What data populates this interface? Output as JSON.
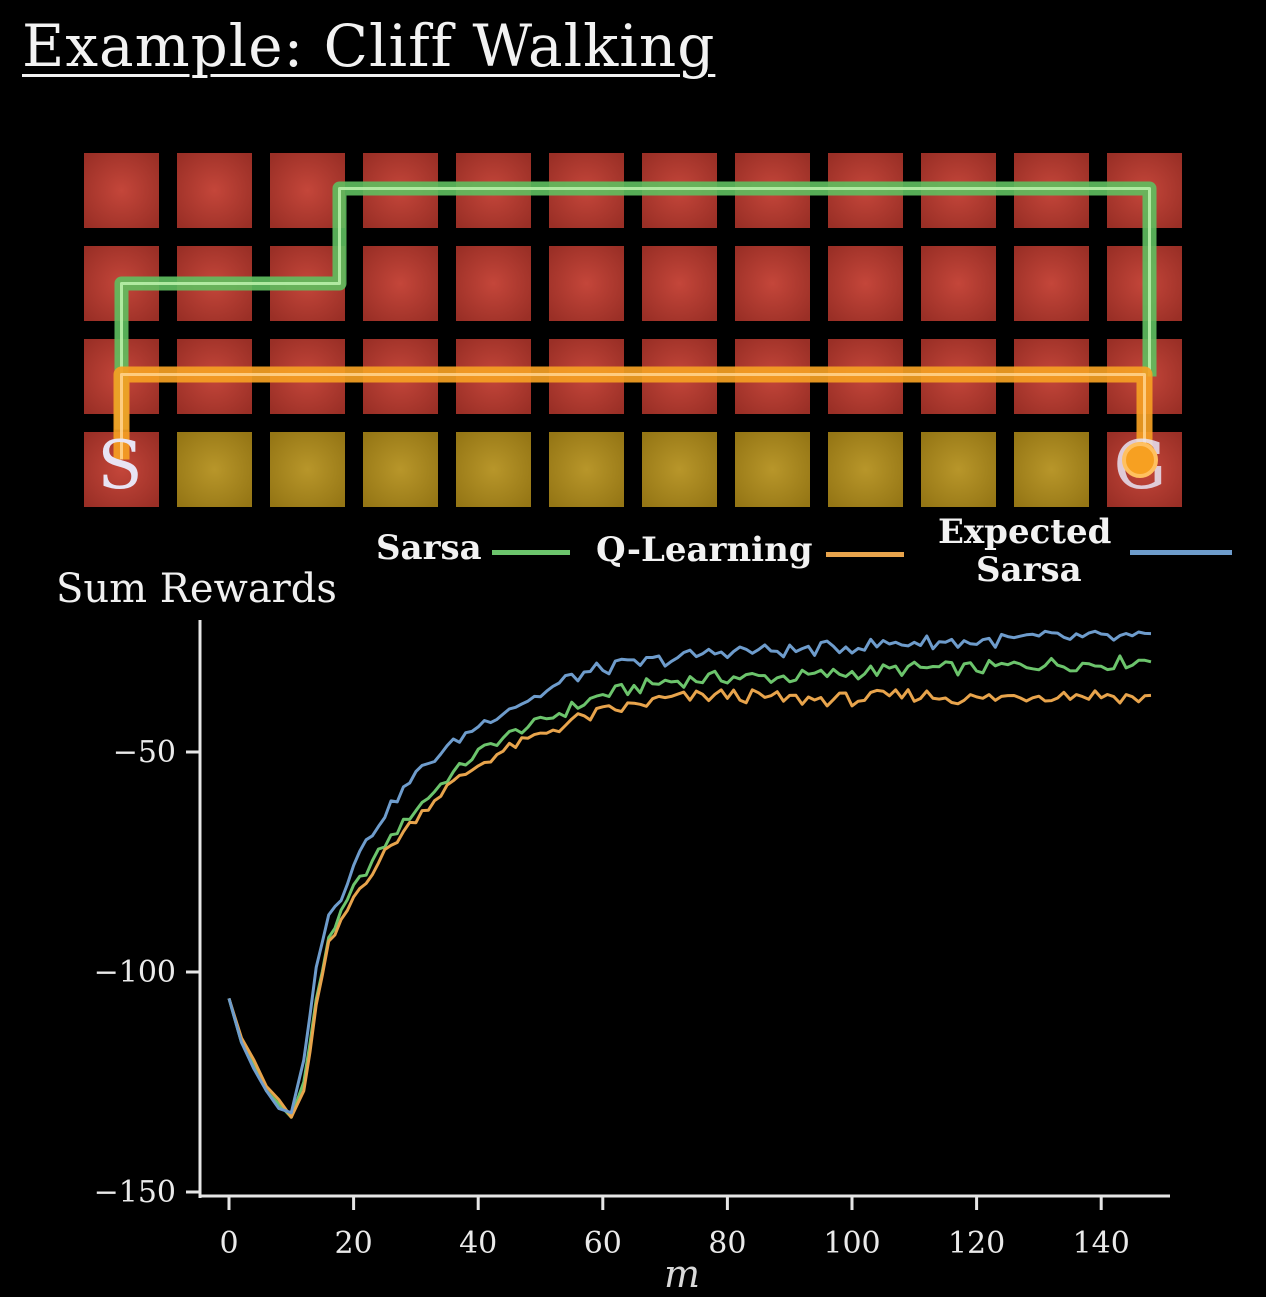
{
  "title": "Example: Cliff Walking",
  "grid": {
    "rows": 4,
    "cols": 12,
    "start_label": "S",
    "goal_label": "G",
    "colors": {
      "cell": "#a8352a",
      "cliff": "#a8891d",
      "sarsa_path": "#5fbf5f",
      "qlearning_path": "#f5a023"
    }
  },
  "legend": {
    "sarsa": "Sarsa",
    "qlearning": "Q-Learning",
    "expected_sarsa_line1": "Expected",
    "expected_sarsa_line2": "Sarsa"
  },
  "chart_data": {
    "type": "line",
    "ylabel": "Sum Rewards",
    "xlabel": "m",
    "xlim": [
      0,
      150
    ],
    "ylim": [
      -150,
      -20
    ],
    "xticks": [
      0,
      20,
      40,
      60,
      80,
      100,
      120,
      140
    ],
    "yticks": [
      -50,
      -100,
      -150
    ],
    "x": [
      0,
      2,
      4,
      6,
      8,
      10,
      12,
      14,
      16,
      18,
      20,
      25,
      30,
      35,
      40,
      45,
      50,
      55,
      60,
      70,
      80,
      90,
      100,
      110,
      120,
      130,
      140,
      148
    ],
    "series": [
      {
        "name": "Sarsa",
        "color": "#6cc46c",
        "values": [
          -106,
          -116,
          -121,
          -127,
          -130,
          -133,
          -125,
          -107,
          -92,
          -87,
          -81,
          -71,
          -63,
          -56,
          -50,
          -46,
          -43,
          -40,
          -37,
          -34,
          -33,
          -33,
          -32,
          -31,
          -31,
          -30,
          -30,
          -29
        ]
      },
      {
        "name": "Q-Learning",
        "color": "#e8a44c",
        "values": [
          -106,
          -115,
          -120,
          -126,
          -129,
          -133,
          -127,
          -108,
          -94,
          -89,
          -83,
          -73,
          -65,
          -58,
          -53,
          -49,
          -46,
          -43,
          -41,
          -38,
          -37,
          -38,
          -38,
          -37,
          -38,
          -37,
          -37,
          -38
        ]
      },
      {
        "name": "Expected Sarsa",
        "color": "#6e9ccc",
        "values": [
          -106,
          -116,
          -122,
          -127,
          -131,
          -132,
          -120,
          -98,
          -87,
          -83,
          -75,
          -64,
          -55,
          -49,
          -44,
          -40,
          -37,
          -33,
          -31,
          -29,
          -27,
          -27,
          -26,
          -25,
          -25,
          -24,
          -24,
          -24
        ]
      }
    ]
  }
}
